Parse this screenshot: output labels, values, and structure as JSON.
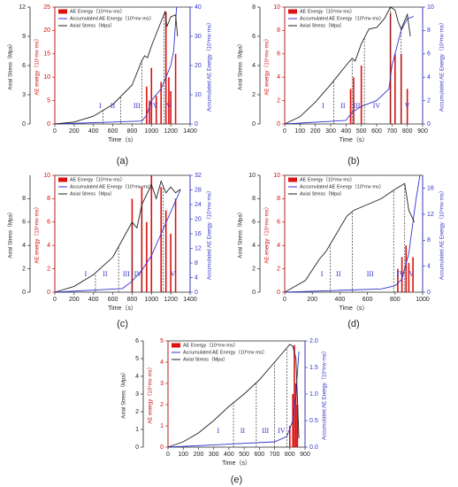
{
  "chart_data": [
    {
      "type": "line",
      "label": "(a)",
      "x_label": "Time（s）",
      "y_label": "Axial Stress（Mpa）",
      "y3_label": "AE energy（10⁴mv·ms）",
      "y2_label": "Accumulated AE Energy（10⁵mv·ms）",
      "legend": "upper left",
      "xlim": [
        0,
        1400
      ],
      "xticks": [
        0,
        200,
        400,
        600,
        800,
        1000,
        1200,
        1400
      ],
      "ylim": [
        0,
        12
      ],
      "yticks": [
        0,
        3,
        6,
        9,
        12
      ],
      "y3lim": [
        0,
        25
      ],
      "y3ticks": [
        0,
        5,
        10,
        15,
        20,
        25
      ],
      "y2lim": [
        0,
        40
      ],
      "y2ticks": [
        0,
        10,
        20,
        30,
        40
      ],
      "series": [
        {
          "name": "AE Energy（10⁴mv·ms）",
          "type": "bar",
          "axis": "y3",
          "color": "#dd1111",
          "x": [
            950,
            980,
            1000,
            1050,
            1100,
            1150,
            1180,
            1200,
            1250
          ],
          "values": [
            8,
            5,
            12,
            6,
            9,
            24,
            10,
            7,
            15
          ]
        },
        {
          "name": "Accumulated AE Energy（10⁵mv·ms）",
          "type": "line",
          "axis": "y2",
          "color": "#3333cc",
          "x": [
            0,
            900,
            950,
            1000,
            1100,
            1150,
            1200,
            1230,
            1260
          ],
          "values": [
            0,
            1,
            3,
            8,
            12,
            16,
            20,
            25,
            40
          ]
        },
        {
          "name": "Axial Stress（Mpa）",
          "type": "line",
          "axis": "y",
          "color": "#222222",
          "x": [
            0,
            200,
            400,
            600,
            800,
            900,
            930,
            960,
            1000,
            1100,
            1140,
            1160,
            1200,
            1250,
            1270
          ],
          "values": [
            0,
            0.2,
            0.8,
            2,
            4,
            6.5,
            7,
            6.8,
            8,
            10.5,
            11.5,
            10,
            11,
            11.2,
            9
          ]
        }
      ],
      "stage_boundaries": [
        500,
        680,
        900,
        1130
      ],
      "annotations": [
        {
          "text": "I",
          "x": 470
        },
        {
          "text": "II",
          "x": 600
        },
        {
          "text": "III",
          "x": 850
        },
        {
          "text": "IV",
          "x": 1030
        },
        {
          "text": "V",
          "x": 1180
        }
      ]
    },
    {
      "type": "line",
      "label": "(b)",
      "x_label": "Time（s）",
      "y_label": "Axial Stress（Mpa）",
      "y3_label": "AE energy（10⁴mv·ms）",
      "y2_label": "Accumulated AE Energy（10⁵mv·ms）",
      "legend": "upper left",
      "xlim": [
        0,
        900
      ],
      "xticks": [
        0,
        100,
        200,
        300,
        400,
        500,
        600,
        700,
        800,
        900
      ],
      "ylim": [
        0,
        8
      ],
      "yticks": [
        0,
        2,
        4,
        6,
        8
      ],
      "y3lim": [
        0,
        10
      ],
      "y3ticks": [
        0,
        2,
        4,
        6,
        8,
        10
      ],
      "y2lim": [
        0,
        10
      ],
      "y2ticks": [
        0,
        2,
        4,
        6,
        8,
        10
      ],
      "series": [
        {
          "name": "AE Energy（10⁴mv·ms）",
          "type": "bar",
          "axis": "y3",
          "color": "#dd1111",
          "x": [
            430,
            450,
            500,
            690,
            720,
            760,
            800
          ],
          "values": [
            3,
            4,
            5,
            9.5,
            6,
            6,
            3
          ]
        },
        {
          "name": "Accumulated AE Energy（10⁵mv·ms）",
          "type": "line",
          "axis": "y2",
          "color": "#3333cc",
          "x": [
            0,
            400,
            440,
            500,
            600,
            680,
            700,
            720,
            760,
            800,
            840
          ],
          "values": [
            0,
            0.3,
            1,
            1.5,
            2,
            3,
            5,
            6,
            8,
            9,
            9.2
          ]
        },
        {
          "name": "Axial Stress（Mpa）",
          "type": "line",
          "axis": "y",
          "color": "#222222",
          "x": [
            0,
            100,
            200,
            300,
            400,
            440,
            460,
            500,
            550,
            600,
            650,
            690,
            720,
            740,
            760,
            800,
            820
          ],
          "values": [
            0,
            0.5,
            1.5,
            2.7,
            4,
            4.5,
            4.3,
            5.5,
            6.5,
            6.6,
            7.2,
            8,
            7.8,
            7,
            6.5,
            7.5,
            6
          ]
        }
      ],
      "stage_boundaries": [
        320,
        440,
        520,
        690,
        760
      ],
      "annotations": [
        {
          "text": "I",
          "x": 250
        },
        {
          "text": "II",
          "x": 380
        },
        {
          "text": "III",
          "x": 470
        },
        {
          "text": "IV",
          "x": 600
        },
        {
          "text": "V",
          "x": 800
        }
      ]
    },
    {
      "type": "line",
      "label": "(c)",
      "x_label": "Time（s）",
      "y_label": "Axial Stress（Mpa）",
      "y3_label": "AE energy（10⁴mv·ms）",
      "y2_label": "Accumulated AE Energy（10⁵mv·ms）",
      "legend": "upper left",
      "xlim": [
        0,
        1400
      ],
      "xticks": [
        0,
        200,
        400,
        600,
        800,
        1000,
        1200,
        1400
      ],
      "ylim": [
        0,
        10
      ],
      "yticks": [
        0,
        2,
        4,
        6,
        8
      ],
      "y3lim": [
        0,
        10
      ],
      "y3ticks": [
        0,
        2,
        4,
        6,
        8,
        10
      ],
      "y2lim": [
        0,
        32
      ],
      "y2ticks": [
        0,
        4,
        8,
        12,
        16,
        20,
        24,
        28,
        32
      ],
      "series": [
        {
          "name": "AE Energy（10⁴mv·ms）",
          "type": "bar",
          "axis": "y3",
          "color": "#dd1111",
          "x": [
            800,
            900,
            950,
            1000,
            1100,
            1150,
            1200,
            1250
          ],
          "values": [
            8,
            9,
            6,
            10,
            9,
            7,
            5,
            8
          ]
        },
        {
          "name": "Accumulated AE Energy（10⁵mv·ms）",
          "type": "line",
          "axis": "y2",
          "color": "#3333cc",
          "x": [
            0,
            700,
            800,
            900,
            1000,
            1100,
            1200,
            1300
          ],
          "values": [
            0,
            1,
            3,
            6,
            10,
            16,
            22,
            28
          ]
        },
        {
          "name": "Axial Stress（Mpa）",
          "type": "line",
          "axis": "y",
          "color": "#222222",
          "x": [
            0,
            200,
            400,
            600,
            700,
            800,
            850,
            900,
            1000,
            1050,
            1100,
            1150,
            1200,
            1250,
            1300
          ],
          "values": [
            0,
            0.5,
            1.5,
            3,
            4.5,
            6,
            5.5,
            7.5,
            9.2,
            8,
            9.5,
            8.5,
            9,
            8.5,
            8.8
          ]
        }
      ],
      "stage_boundaries": [
        420,
        660,
        800,
        900,
        1120
      ],
      "annotations": [
        {
          "text": "I",
          "x": 320
        },
        {
          "text": "II",
          "x": 520
        },
        {
          "text": "III",
          "x": 740
        },
        {
          "text": "IV",
          "x": 860
        },
        {
          "text": "V",
          "x": 1220
        }
      ]
    },
    {
      "type": "line",
      "label": "(d)",
      "x_label": "Time（s）",
      "y_label": "Axial Stress（Mpa）",
      "y3_label": "AE energy（10⁴mv·ms）",
      "y2_label": "Accumulated AE Energy（10⁵mv·ms）",
      "legend": "upper left",
      "xlim": [
        0,
        1000
      ],
      "xticks": [
        0,
        200,
        400,
        600,
        800,
        1000
      ],
      "ylim": [
        0,
        10
      ],
      "yticks": [
        0,
        2,
        4,
        6,
        8,
        10
      ],
      "y3lim": [
        0,
        10
      ],
      "y3ticks": [
        0,
        2,
        4,
        6,
        8,
        10
      ],
      "y2lim": [
        0,
        18
      ],
      "y2ticks": [
        0,
        4,
        8,
        12,
        16
      ],
      "series": [
        {
          "name": "AE Energy（10⁴mv·ms）",
          "type": "bar",
          "axis": "y3",
          "color": "#dd1111",
          "x": [
            820,
            850,
            880,
            900,
            930
          ],
          "values": [
            2,
            3,
            4,
            2.5,
            3
          ]
        },
        {
          "name": "Accumulated AE Energy（10⁵mv·ms）",
          "type": "line",
          "axis": "y2",
          "color": "#3333cc",
          "x": [
            0,
            700,
            800,
            850,
            900,
            950,
            980
          ],
          "values": [
            0,
            0.5,
            1,
            2,
            6,
            14,
            18
          ]
        },
        {
          "name": "Axial Stress（Mpa）",
          "type": "line",
          "axis": "y",
          "color": "#222222",
          "x": [
            0,
            150,
            250,
            300,
            350,
            450,
            500,
            600,
            700,
            800,
            870,
            900,
            940
          ],
          "values": [
            0,
            1,
            2.8,
            3.5,
            4.5,
            6.5,
            7,
            7.5,
            8,
            8.8,
            9.3,
            7,
            6
          ]
        }
      ],
      "stage_boundaries": [
        330,
        490,
        790,
        870
      ],
      "annotations": [
        {
          "text": "I",
          "x": 270
        },
        {
          "text": "II",
          "x": 390
        },
        {
          "text": "III",
          "x": 620
        },
        {
          "text": "IV",
          "x": 840
        },
        {
          "text": "V",
          "x": 920
        }
      ]
    },
    {
      "type": "line",
      "label": "(e)",
      "x_label": "Time（s）",
      "y_label": "Axial Stress（Mpa）",
      "y3_label": "AE energy（10⁴mv·ms）",
      "y2_label": "Accumulated AE Energy（10⁵mv·ms）",
      "legend": "upper left",
      "xlim": [
        0,
        900
      ],
      "xticks": [
        0,
        100,
        200,
        300,
        400,
        500,
        600,
        700,
        800,
        900
      ],
      "ylim": [
        0,
        6
      ],
      "yticks": [
        0,
        1,
        2,
        3,
        4,
        5,
        6
      ],
      "y3lim": [
        0,
        5
      ],
      "y3ticks": [
        0,
        1,
        2,
        3,
        4,
        5
      ],
      "y2lim": [
        0,
        2
      ],
      "y2ticks": [
        {
          "value": 0,
          "label": "0.0"
        },
        0.5,
        {
          "value": 1,
          "label": "1.0"
        },
        1.5,
        {
          "value": 2,
          "label": "2.0"
        }
      ],
      "series": [
        {
          "name": "AE Energy（10⁴mv·ms）",
          "type": "bar",
          "axis": "y3",
          "color": "#dd1111",
          "x": [
            800,
            820,
            830,
            840,
            850
          ],
          "values": [
            1,
            2.5,
            4.8,
            3,
            2
          ]
        },
        {
          "name": "Accumulated AE Energy（10⁵mv·ms）",
          "type": "line",
          "axis": "y2",
          "color": "#3333cc",
          "x": [
            0,
            700,
            780,
            820,
            840,
            860
          ],
          "values": [
            0,
            0.1,
            0.2,
            0.5,
            1,
            1.8
          ]
        },
        {
          "name": "Axial Stress（Mpa）",
          "type": "line",
          "axis": "y",
          "color": "#222222",
          "x": [
            0,
            100,
            200,
            300,
            400,
            500,
            600,
            700,
            800,
            820,
            840,
            860
          ],
          "values": [
            0,
            0.3,
            0.8,
            1.5,
            2.3,
            3,
            3.8,
            4.8,
            5.8,
            5.7,
            5,
            0.5
          ]
        }
      ],
      "stage_boundaries": [
        430,
        580,
        700,
        780
      ],
      "annotations": [
        {
          "text": "I",
          "x": 330
        },
        {
          "text": "II",
          "x": 490
        },
        {
          "text": "III",
          "x": 640
        },
        {
          "text": "IV",
          "x": 745
        }
      ]
    }
  ]
}
